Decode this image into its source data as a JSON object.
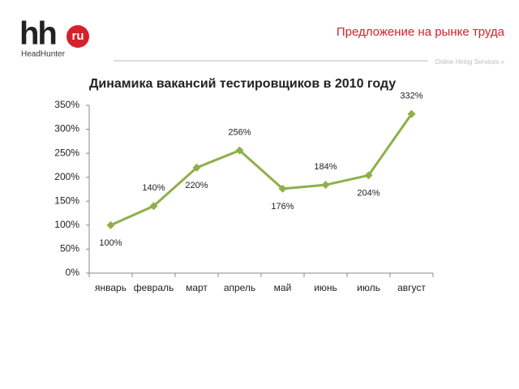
{
  "header": {
    "logo": "hh",
    "logo_domain": "ru",
    "logo_name": "HeadHunter",
    "title": "Предложение на рынке труда",
    "tagline": "Online Hiring Services »"
  },
  "chart_data": {
    "type": "line",
    "title": "Динамика вакансий тестировщиков в 2010 году",
    "categories": [
      "январь",
      "февраль",
      "март",
      "апрель",
      "май",
      "июнь",
      "июль",
      "август"
    ],
    "values": [
      100,
      140,
      220,
      256,
      176,
      184,
      204,
      332
    ],
    "value_labels": [
      "100%",
      "140%",
      "220%",
      "256%",
      "176%",
      "184%",
      "204%",
      "332%"
    ],
    "color": "#8db04a",
    "ylim": [
      0,
      350
    ],
    "yticks": [
      {
        "value": 0,
        "label": "0%"
      },
      {
        "value": 50,
        "label": "50%"
      },
      {
        "value": 100,
        "label": "100%"
      },
      {
        "value": 150,
        "label": "150%"
      },
      {
        "value": 200,
        "label": "200%"
      },
      {
        "value": 250,
        "label": "250%"
      },
      {
        "value": 300,
        "label": "300%"
      },
      {
        "value": 350,
        "label": "350%"
      }
    ],
    "grid": false
  }
}
